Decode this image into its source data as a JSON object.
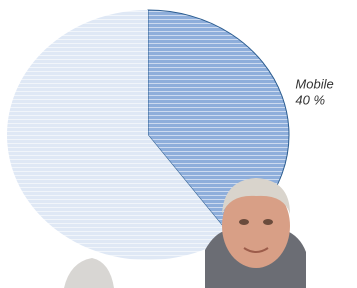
{
  "chart_data": {
    "type": "pie",
    "categories": [
      "Mobile",
      null
    ],
    "values": [
      40,
      60
    ],
    "value_labels": [
      "40 %",
      null
    ],
    "colors": [
      "#8eaedb",
      "#dfe8f5"
    ]
  }
}
